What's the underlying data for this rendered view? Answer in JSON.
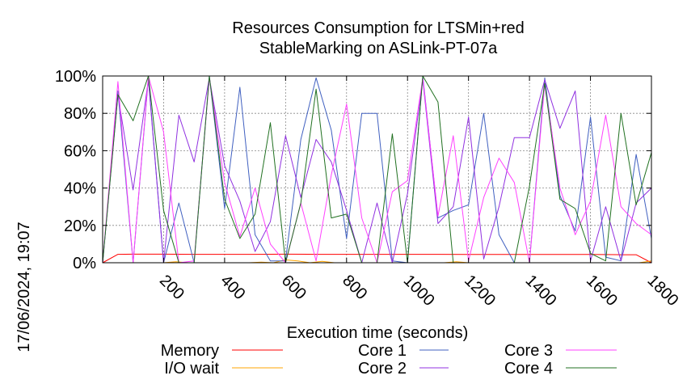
{
  "stamp": "17/06/2024, 19:07",
  "chart_data": {
    "type": "line",
    "title": "Resources Consumption for LTSMin+red",
    "subtitle": "StableMarking on ASLink-PT-07a",
    "xlabel": "Execution time (seconds)",
    "ylabel": "",
    "xlim": [
      0,
      1800
    ],
    "ylim": [
      0,
      100
    ],
    "x_ticks": [
      200,
      400,
      600,
      800,
      1000,
      1200,
      1400,
      1600,
      1800
    ],
    "y_ticks": [
      0,
      20,
      40,
      60,
      80,
      100
    ],
    "y_tick_labels": [
      "0%",
      "20%",
      "40%",
      "60%",
      "80%",
      "100%"
    ],
    "grid": true,
    "legend_position": "bottom",
    "series": [
      {
        "name": "Memory",
        "color": "#ff0000",
        "x": [
          0,
          50,
          100,
          200,
          300,
          400,
          500,
          600,
          700,
          800,
          900,
          1000,
          1100,
          1200,
          1300,
          1400,
          1500,
          1600,
          1700,
          1750,
          1800
        ],
        "values": [
          0,
          4.5,
          4.6,
          4.6,
          4.5,
          4.5,
          4.5,
          4.6,
          4.5,
          4.5,
          4.5,
          4.5,
          4.5,
          4.4,
          4.4,
          4.4,
          4.4,
          4.4,
          4.3,
          4.3,
          0
        ]
      },
      {
        "name": "I/O wait",
        "color": "#ffa500",
        "x": [
          0,
          40,
          80,
          120,
          160,
          200,
          240,
          280,
          320,
          360,
          400,
          440,
          480,
          520,
          560,
          600,
          640,
          680,
          720,
          760,
          800,
          840,
          880,
          920,
          960,
          1000,
          1040,
          1080,
          1120,
          1160,
          1200,
          1240,
          1280,
          1320,
          1360,
          1400,
          1440,
          1480,
          1520,
          1560,
          1600,
          1640,
          1680,
          1720,
          1760,
          1800
        ],
        "values": [
          0,
          0,
          0,
          0,
          0,
          0,
          0.5,
          0,
          0,
          0,
          0,
          0,
          0,
          0.3,
          0,
          1.5,
          1,
          0,
          0.8,
          0,
          0,
          0,
          0,
          0,
          0,
          0,
          0,
          0,
          0,
          0.5,
          0,
          0,
          0,
          0,
          0,
          0,
          0,
          0,
          0,
          0,
          0,
          0,
          0,
          0,
          0,
          1
        ]
      },
      {
        "name": "Core 1",
        "color": "#4060c0",
        "x": [
          0,
          50,
          100,
          150,
          200,
          250,
          300,
          350,
          400,
          450,
          500,
          550,
          600,
          650,
          700,
          750,
          800,
          850,
          900,
          950,
          1000,
          1050,
          1100,
          1150,
          1200,
          1250,
          1300,
          1350,
          1400,
          1450,
          1500,
          1550,
          1600,
          1650,
          1700,
          1750,
          1800
        ],
        "values": [
          0,
          92,
          0,
          99,
          0,
          32,
          0,
          100,
          29,
          94,
          15,
          1,
          1,
          66,
          99,
          71,
          13,
          80,
          80,
          1,
          0,
          100,
          24,
          28,
          31,
          80,
          15,
          0,
          0,
          99,
          36,
          17,
          78,
          3,
          1,
          58,
          13
        ]
      },
      {
        "name": "Core 2",
        "color": "#9030e0",
        "x": [
          0,
          50,
          100,
          150,
          200,
          250,
          300,
          350,
          400,
          450,
          500,
          550,
          600,
          650,
          700,
          750,
          800,
          850,
          900,
          950,
          1000,
          1050,
          1100,
          1150,
          1200,
          1250,
          1300,
          1350,
          1400,
          1450,
          1500,
          1550,
          1600,
          1650,
          1700,
          1750,
          1800
        ],
        "values": [
          0,
          90,
          39,
          98,
          0,
          79,
          54,
          99,
          52,
          33,
          6,
          22,
          68,
          35,
          66,
          54,
          28,
          0,
          32,
          0,
          37,
          98,
          21,
          30,
          78,
          2,
          30,
          67,
          67,
          98,
          72,
          92,
          1,
          30,
          1,
          32,
          40
        ]
      },
      {
        "name": "Core 3",
        "color": "#ff40ff",
        "x": [
          0,
          50,
          100,
          150,
          200,
          250,
          300,
          350,
          400,
          450,
          500,
          550,
          600,
          650,
          700,
          750,
          800,
          850,
          900,
          950,
          1000,
          1050,
          1100,
          1150,
          1200,
          1250,
          1300,
          1350,
          1400,
          1450,
          1500,
          1550,
          1600,
          1650,
          1700,
          1750,
          1800
        ],
        "values": [
          0,
          97,
          0,
          100,
          70,
          0,
          1,
          99,
          43,
          14,
          40,
          10,
          0,
          32,
          1,
          47,
          85,
          24,
          0,
          38,
          44,
          99,
          25,
          68,
          1,
          35,
          56,
          43,
          0,
          96,
          40,
          15,
          33,
          79,
          30,
          21,
          15
        ]
      },
      {
        "name": "Core 4",
        "color": "#207020",
        "x": [
          0,
          50,
          100,
          150,
          200,
          250,
          300,
          350,
          400,
          450,
          500,
          550,
          600,
          650,
          700,
          750,
          800,
          850,
          900,
          950,
          1000,
          1050,
          1100,
          1150,
          1200,
          1250,
          1300,
          1350,
          1400,
          1450,
          1500,
          1550,
          1600,
          1650,
          1700,
          1750,
          1800
        ],
        "values": [
          0,
          90,
          76,
          100,
          28,
          0,
          0,
          100,
          34,
          13,
          26,
          75,
          0,
          32,
          93,
          24,
          26,
          0,
          0,
          69,
          0,
          100,
          86,
          0,
          0,
          0,
          0,
          0,
          41,
          96,
          34,
          29,
          5,
          1,
          80,
          31,
          59
        ]
      }
    ]
  }
}
